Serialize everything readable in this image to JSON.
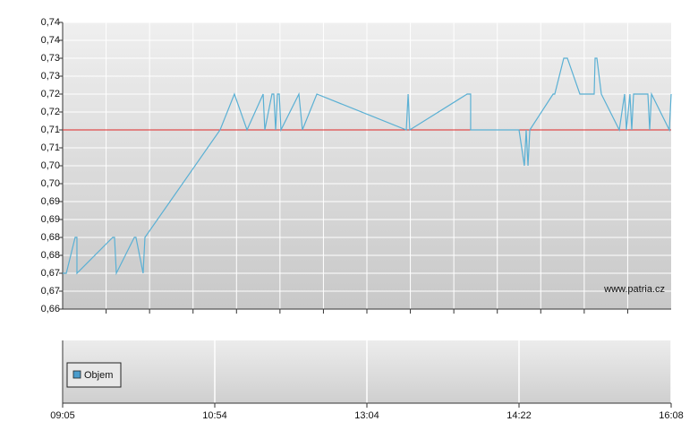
{
  "chart_data": {
    "type": "line",
    "x": [
      0,
      0.024,
      0.082,
      0.094,
      0.094,
      0.329,
      0.341,
      0.353,
      0.471,
      0.482,
      0.529,
      0.541,
      1.035,
      1.129,
      1.212,
      1.318,
      1.329,
      1.376,
      1.388,
      1.4,
      1.412,
      1.424,
      1.435,
      1.553,
      1.576,
      1.671,
      2.259,
      2.271,
      2.282,
      2.659,
      2.682,
      2.682,
      3,
      3.035,
      3.047,
      3.059,
      3.071,
      3.224,
      3.235,
      3.294,
      3.318,
      3.4,
      3.494,
      3.5,
      3.512,
      3.541,
      3.659,
      3.694,
      3.706,
      3.729,
      3.741,
      3.753,
      3.847,
      3.859,
      3.871,
      3.988,
      4
    ],
    "values": [
      0.67,
      0.67,
      0.68,
      0.68,
      0.67,
      0.68,
      0.68,
      0.67,
      0.68,
      0.68,
      0.67,
      0.68,
      0.71,
      0.72,
      0.71,
      0.72,
      0.71,
      0.72,
      0.72,
      0.71,
      0.72,
      0.72,
      0.71,
      0.72,
      0.71,
      0.72,
      0.71,
      0.72,
      0.71,
      0.72,
      0.72,
      0.71,
      0.71,
      0.7,
      0.71,
      0.7,
      0.71,
      0.72,
      0.72,
      0.73,
      0.73,
      0.72,
      0.72,
      0.73,
      0.73,
      0.72,
      0.71,
      0.72,
      0.71,
      0.72,
      0.71,
      0.72,
      0.72,
      0.71,
      0.72,
      0.71,
      0.72
    ],
    "color": "#5ab0d4",
    "reference_line": {
      "value": 0.71,
      "color": "#e02828"
    },
    "ylim": [
      0.66,
      0.74
    ],
    "yticks": [
      {
        "value": 0.66,
        "label": "0,66"
      },
      {
        "value": 0.665,
        "label": "0,67"
      },
      {
        "value": 0.67,
        "label": "0,67"
      },
      {
        "value": 0.675,
        "label": "0,68"
      },
      {
        "value": 0.68,
        "label": "0,68"
      },
      {
        "value": 0.685,
        "label": "0,69"
      },
      {
        "value": 0.69,
        "label": "0,69"
      },
      {
        "value": 0.695,
        "label": "0,70"
      },
      {
        "value": 0.7,
        "label": "0,70"
      },
      {
        "value": 0.705,
        "label": "0,71"
      },
      {
        "value": 0.71,
        "label": "0,71"
      },
      {
        "value": 0.715,
        "label": "0,72"
      },
      {
        "value": 0.72,
        "label": "0,72"
      },
      {
        "value": 0.725,
        "label": "0,73"
      },
      {
        "value": 0.73,
        "label": "0,73"
      },
      {
        "value": 0.735,
        "label": "0,74"
      },
      {
        "value": 0.74,
        "label": "0,74"
      }
    ],
    "xlim": [
      0,
      4
    ],
    "xticks": [
      {
        "value": 0,
        "label": "09:05"
      },
      {
        "value": 1,
        "label": "10:54"
      },
      {
        "value": 2,
        "label": "13:04"
      },
      {
        "value": 3,
        "label": "14:22"
      },
      {
        "value": 4,
        "label": "16:08"
      }
    ],
    "grid": true,
    "watermark": "www.patria.cz",
    "volume_legend": {
      "label": "Objem",
      "color": "#4a9ccc"
    }
  }
}
